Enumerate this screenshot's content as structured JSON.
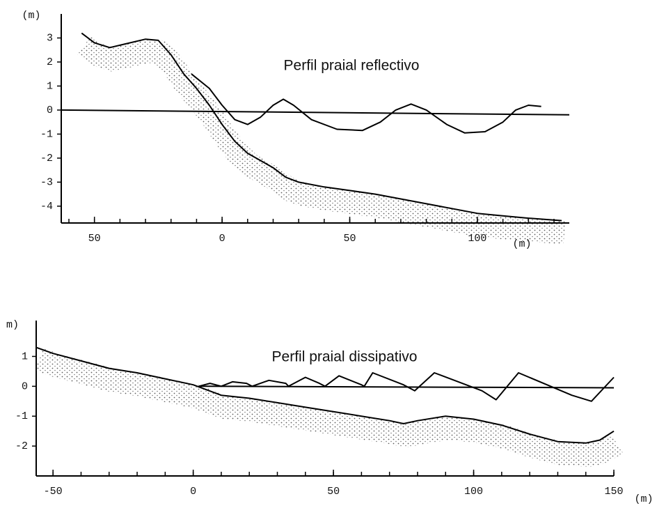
{
  "chart_data": [
    {
      "type": "line",
      "title": "Perfil praial reflectivo",
      "ylabel": "(m)",
      "xlabel": "(m)",
      "xlim": [
        -63,
        136
      ],
      "ylim": [
        -4.7,
        4.0
      ],
      "xticks": [
        {
          "value": -50,
          "label": "50"
        },
        0,
        50,
        100
      ],
      "xminorticks": [
        -60,
        -50,
        -40,
        -30,
        -20,
        -10,
        0,
        10,
        20,
        30,
        40,
        50,
        60,
        70,
        80,
        90,
        100,
        110,
        120,
        130
      ],
      "yticks": [
        3,
        2,
        1,
        0,
        -1,
        -2,
        -3,
        -4
      ],
      "series": [
        {
          "color": "#000000",
          "x": [
            -55,
            -50,
            -44,
            -38,
            -30,
            -25,
            -20,
            -15,
            -10,
            -5,
            0,
            5,
            10,
            15,
            20,
            25,
            30,
            40,
            50,
            60,
            70,
            80,
            90,
            100,
            110,
            120,
            133
          ],
          "values": [
            3.2,
            2.8,
            2.6,
            2.75,
            2.95,
            2.9,
            2.3,
            1.5,
            0.9,
            0.2,
            -0.6,
            -1.3,
            -1.8,
            -2.1,
            -2.4,
            -2.8,
            -3.0,
            -3.2,
            -3.35,
            -3.5,
            -3.7,
            -3.9,
            -4.1,
            -4.3,
            -4.4,
            -4.5,
            -4.6
          ]
        },
        {
          "color": "#000000",
          "x": [
            -12,
            -5,
            0,
            5,
            10,
            15,
            20,
            24,
            28,
            35,
            45,
            55,
            62,
            68,
            74,
            80,
            88,
            95,
            103,
            110,
            115,
            120,
            125
          ],
          "values": [
            1.5,
            0.9,
            0.2,
            -0.4,
            -0.6,
            -0.3,
            0.2,
            0.45,
            0.2,
            -0.4,
            -0.8,
            -0.85,
            -0.5,
            0,
            0.25,
            0,
            -0.6,
            -0.95,
            -0.9,
            -0.5,
            0,
            0.2,
            0.15
          ]
        },
        {
          "color": "#000000",
          "x": [
            -63,
            136
          ],
          "values": [
            0,
            -0.2
          ]
        }
      ]
    },
    {
      "type": "line",
      "title": "Perfil praial dissipativo",
      "ylabel": "m)",
      "xlabel": "(m)",
      "xlim": [
        -56,
        150
      ],
      "ylim": [
        -3.0,
        2.2
      ],
      "xticks": [
        -50,
        0,
        50,
        100,
        150
      ],
      "xminorticks": [
        -50,
        -40,
        -30,
        -20,
        -10,
        0,
        10,
        20,
        30,
        40,
        50,
        60,
        70,
        80,
        90,
        100,
        110,
        120,
        130,
        140,
        150
      ],
      "yticks": [
        1,
        0,
        -1,
        -2
      ],
      "series": [
        {
          "color": "#000000",
          "x": [
            -56,
            -50,
            -40,
            -30,
            -20,
            -10,
            0,
            10,
            20,
            30,
            40,
            50,
            60,
            70,
            75,
            80,
            90,
            100,
            110,
            120,
            130,
            140,
            145,
            150
          ],
          "values": [
            1.3,
            1.1,
            0.85,
            0.6,
            0.45,
            0.25,
            0.05,
            -0.3,
            -0.4,
            -0.55,
            -0.7,
            -0.85,
            -1.0,
            -1.15,
            -1.25,
            -1.15,
            -1.0,
            -1.1,
            -1.3,
            -1.6,
            -1.85,
            -1.9,
            -1.8,
            -1.5
          ]
        },
        {
          "color": "#000000",
          "x": [
            2,
            6,
            10,
            14,
            19,
            21,
            27,
            33,
            34,
            40,
            45,
            47,
            52,
            60,
            61,
            64,
            75,
            79,
            86,
            103,
            108,
            116,
            135,
            142,
            150
          ],
          "values": [
            0,
            0.1,
            0,
            0.15,
            0.1,
            0,
            0.2,
            0.1,
            0,
            0.3,
            0.1,
            0,
            0.35,
            0.05,
            0,
            0.45,
            0.05,
            -0.15,
            0.45,
            -0.15,
            -0.45,
            0.45,
            -0.3,
            -0.5,
            0.3
          ]
        },
        {
          "color": "#000000",
          "x": [
            2,
            150
          ],
          "values": [
            0,
            -0.05
          ]
        }
      ]
    }
  ]
}
